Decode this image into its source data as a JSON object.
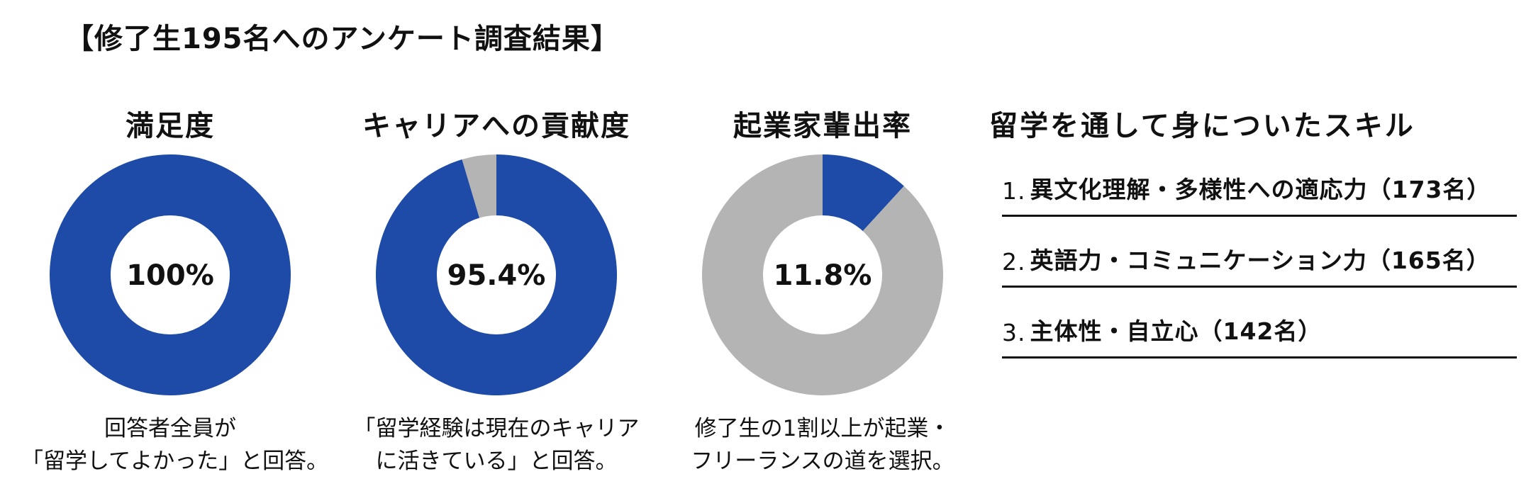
{
  "page": {
    "title": "【修了生195名へのアンケート調査結果】"
  },
  "colors": {
    "highlight": "#1e4aa8",
    "remainder": "#b4b4b4",
    "hole": "#ffffff"
  },
  "chart_data": [
    {
      "type": "pie",
      "title": "満足度",
      "center_label": "100%",
      "values": [
        100,
        0
      ],
      "caption": [
        "回答者全員が",
        "「留学してよかった」と回答。"
      ]
    },
    {
      "type": "pie",
      "title": "キャリアへの貢献度",
      "center_label": "95.4%",
      "values": [
        95.4,
        4.6
      ],
      "caption": [
        "「留学経験は現在のキャリア",
        "に活きている」と回答。"
      ]
    },
    {
      "type": "pie",
      "title": "起業家輩出率",
      "center_label": "11.8%",
      "values": [
        11.8,
        88.2
      ],
      "caption": [
        "修了生の1割以上が起業・",
        "フリーランスの道を選択。"
      ]
    }
  ],
  "skills": {
    "title": "留学を通して身についたスキル",
    "items": [
      {
        "rank": "1.",
        "text": "異文化理解・多様性への適応力（173名）"
      },
      {
        "rank": "2.",
        "text": "英語力・コミュニケーション力（165名）"
      },
      {
        "rank": "3.",
        "text": "主体性・自立心（142名）"
      }
    ]
  }
}
